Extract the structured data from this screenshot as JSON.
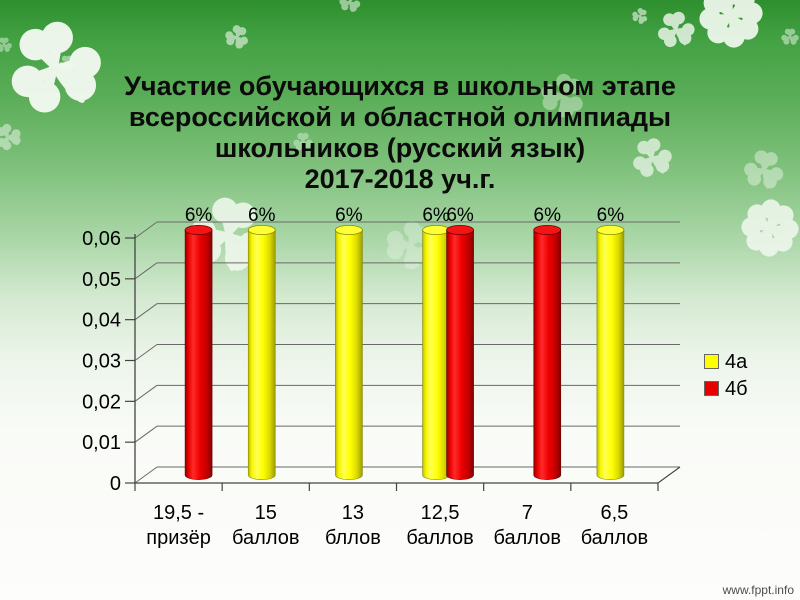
{
  "slide": {
    "title_lines": [
      "Участие обучающихся в школьном этапе",
      "всероссийской и областной олимпиады",
      "школьников (русский язык)",
      "2017-2018 уч.г."
    ],
    "watermark": "www.fppt.info",
    "background_accent_color": "#44a244"
  },
  "chart_data": {
    "type": "bar",
    "variant": "3d-cylinder",
    "title": "Участие обучающихся в школьном этапе всероссийской и областной олимпиады школьников (русский язык) 2017-2018 уч.г.",
    "categories": [
      "19,5 - призёр",
      "15 баллов",
      "13 бллов",
      "12,5 баллов",
      "7 баллов",
      "6,5 баллов"
    ],
    "categories_lines": [
      [
        "19,5 -",
        "призёр"
      ],
      [
        "15",
        "баллов"
      ],
      [
        "13",
        "бллов"
      ],
      [
        "12,5",
        "баллов"
      ],
      [
        "7",
        "баллов"
      ],
      [
        "6,5",
        "баллов"
      ]
    ],
    "series": [
      {
        "name": "4а",
        "color": "#ffff00",
        "values": [
          0,
          0.06,
          0.06,
          0.06,
          0,
          0.06
        ]
      },
      {
        "name": "4б",
        "color": "#e60000",
        "values": [
          0.06,
          0,
          0,
          0.06,
          0.06,
          0
        ]
      }
    ],
    "data_label": "6%",
    "yticks_labels": [
      "0",
      "0,01",
      "0,02",
      "0,03",
      "0,04",
      "0,05",
      "0,06"
    ],
    "ylim": [
      0,
      0.06
    ],
    "grid": true,
    "legend_position": "right",
    "grid_color": "#6a6a6a",
    "axis_color": "#444444"
  }
}
